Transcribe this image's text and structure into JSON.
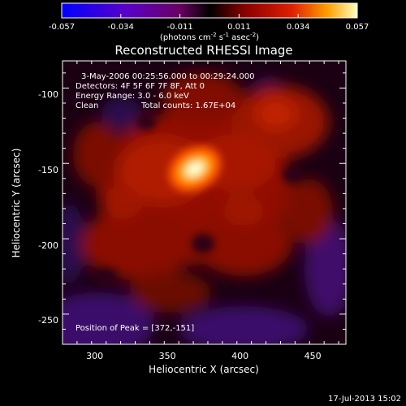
{
  "chart_data": {
    "type": "heatmap",
    "title": "Reconstructed RHESSI Image",
    "xlabel": "Heliocentric X (arcsec)",
    "ylabel": "Heliocentric Y (arcsec)",
    "xlim": [
      275,
      470
    ],
    "ylim": [
      -270,
      -82
    ],
    "xticks": [
      300,
      350,
      400,
      450
    ],
    "yticks": [
      -100,
      -150,
      -200,
      -250
    ],
    "colorbar": {
      "range": [
        -0.057,
        0.057
      ],
      "ticks": [
        "-0.057",
        "-0.034",
        "-0.011",
        "0.011",
        "0.034",
        "0.057"
      ],
      "unit_text": "(photons cm",
      "unit_sup1": "-2",
      "unit_mid": " s",
      "unit_sup2": "-1",
      "unit_mid2": " asec",
      "unit_sup3": "-2",
      "unit_end": ")"
    },
    "annotations": {
      "time": "3-May-2006 00:25:56.000 to 00:29:24.000",
      "detectors": "Detectors: 4F 5F 6F 7F 8F, Att 0",
      "energy": "Energy Range: 3.0 - 6.0 keV",
      "method": "Clean",
      "counts": "Total counts: 1.67E+04",
      "peak": "Position of Peak = [372,-151]"
    },
    "peak": [
      372,
      -151
    ],
    "footer_date": "17-Jul-2013 15:02"
  }
}
